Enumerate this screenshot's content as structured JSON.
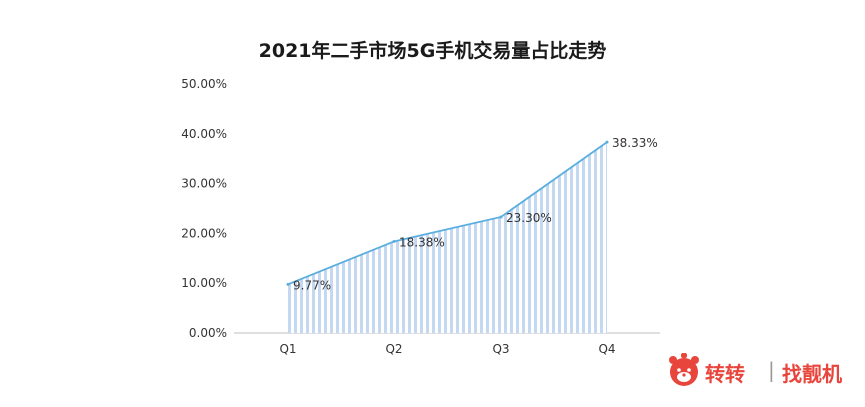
{
  "chart_data": {
    "type": "area",
    "title": "2021年二手市场5G手机交易量占比走势",
    "categories": [
      "Q1",
      "Q2",
      "Q3",
      "Q4"
    ],
    "series": [
      {
        "values": [
          9.77,
          18.38,
          23.3,
          38.33
        ],
        "labels": [
          "9.77%",
          "18.38%",
          "23.30%",
          "38.33%"
        ]
      }
    ],
    "y_ticks": [
      "0.00%",
      "10.00%",
      "20.00%",
      "30.00%",
      "40.00%",
      "50.00%"
    ],
    "ylim": [
      0,
      50
    ],
    "grid": false,
    "line_color": "#5aaee0",
    "fill_color": "#c5d8f2"
  },
  "brand": {
    "name": "转转",
    "separator": "|",
    "slogan": "找靓机",
    "name_color": "#e8453c",
    "slogan_color": "#e8453c"
  }
}
